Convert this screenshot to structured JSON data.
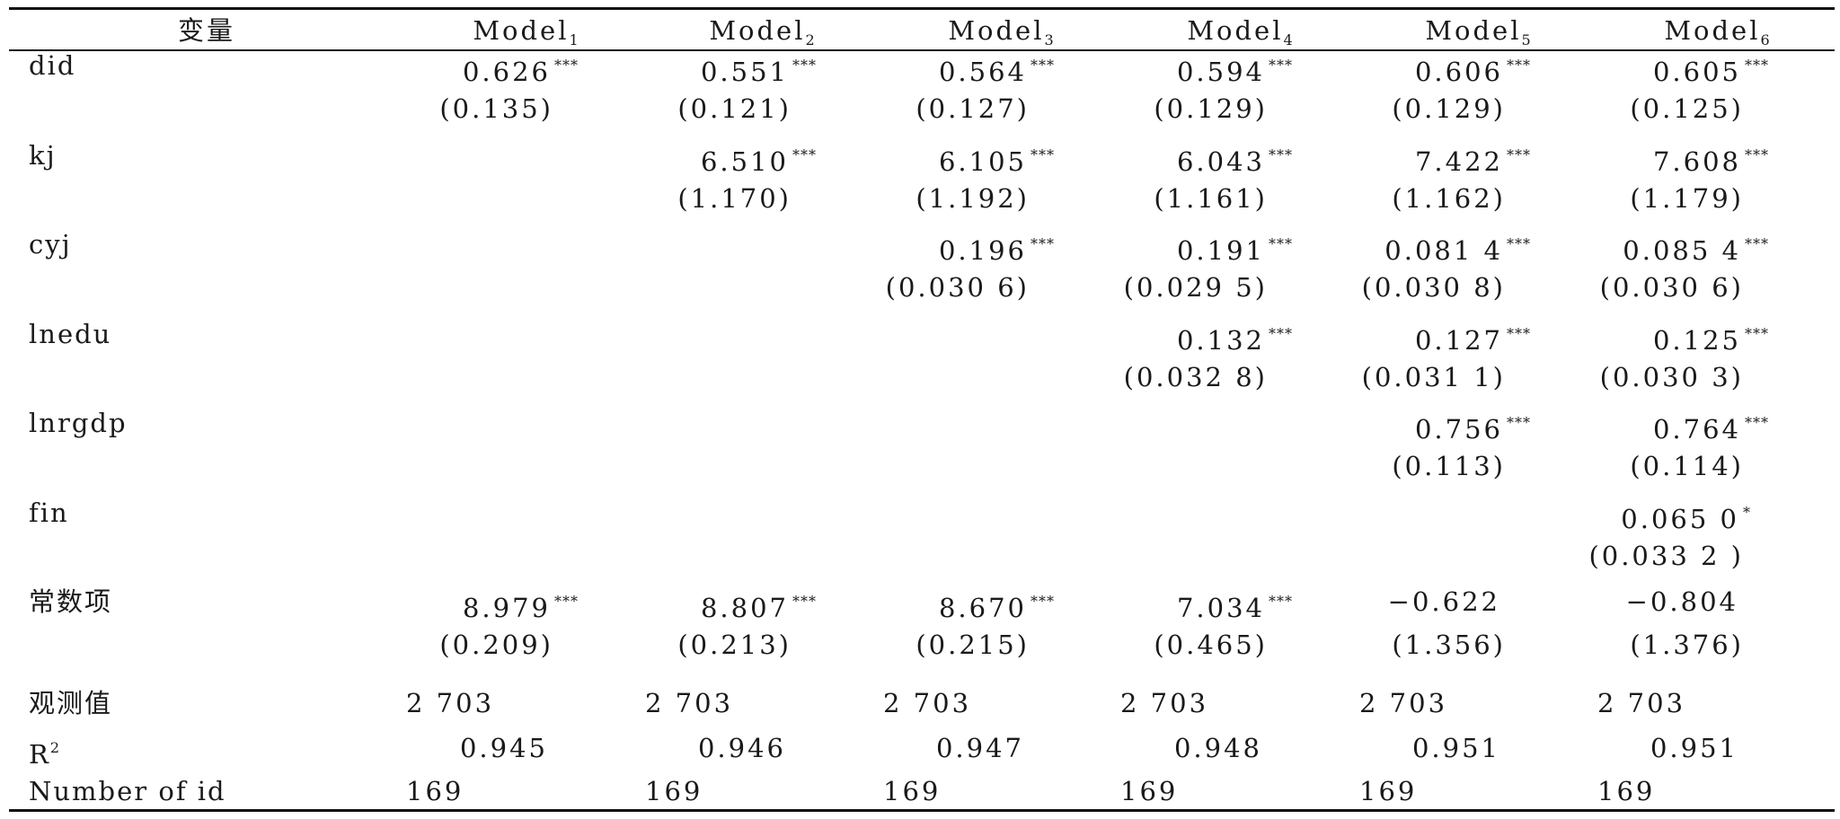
{
  "table": {
    "headers": [
      "变量",
      "Model1",
      "Model2",
      "Model3",
      "Model4",
      "Model5",
      "Model6"
    ],
    "header_sub": [
      "",
      "1",
      "2",
      "3",
      "4",
      "5",
      "6"
    ],
    "rows": [
      {
        "label": "did",
        "coef": [
          "0.626",
          "0.551",
          "0.564",
          "0.594",
          "0.606",
          "0.605"
        ],
        "stars": [
          "***",
          "***",
          "***",
          "***",
          "***",
          "***"
        ],
        "se": [
          "(0.135)",
          "(0.121)",
          "(0.127)",
          "(0.129)",
          "(0.129)",
          "(0.125)"
        ]
      },
      {
        "label": "kj",
        "coef": [
          "",
          "6.510",
          "6.105",
          "6.043",
          "7.422",
          "7.608"
        ],
        "stars": [
          "",
          "***",
          "***",
          "***",
          "***",
          "***"
        ],
        "se": [
          "",
          "(1.170)",
          "(1.192)",
          "(1.161)",
          "(1.162)",
          "(1.179)"
        ]
      },
      {
        "label": "cyj",
        "coef": [
          "",
          "",
          "0.196",
          "0.191",
          "0.081 4",
          "0.085 4"
        ],
        "stars": [
          "",
          "",
          "***",
          "***",
          "***",
          "***"
        ],
        "se": [
          "",
          "",
          "(0.030 6)",
          "(0.029 5)",
          "(0.030 8)",
          "(0.030 6)"
        ]
      },
      {
        "label": "lnedu",
        "coef": [
          "",
          "",
          "",
          "0.132",
          "0.127",
          "0.125"
        ],
        "stars": [
          "",
          "",
          "",
          "***",
          "***",
          "***"
        ],
        "se": [
          "",
          "",
          "",
          "(0.032 8)",
          "(0.031 1)",
          "(0.030 3)"
        ]
      },
      {
        "label": "lnrgdp",
        "coef": [
          "",
          "",
          "",
          "",
          "0.756",
          "0.764"
        ],
        "stars": [
          "",
          "",
          "",
          "",
          "***",
          "***"
        ],
        "se": [
          "",
          "",
          "",
          "",
          "(0.113)",
          "(0.114)"
        ]
      },
      {
        "label": "fin",
        "coef": [
          "",
          "",
          "",
          "",
          "",
          "0.065 0"
        ],
        "stars": [
          "",
          "",
          "",
          "",
          "",
          "*"
        ],
        "se": [
          "",
          "",
          "",
          "",
          "",
          "(0.033 2 )"
        ]
      },
      {
        "label": "常数项",
        "coef": [
          "8.979",
          "8.807",
          "8.670",
          "7.034",
          "−0.622",
          "−0.804"
        ],
        "stars": [
          "***",
          "***",
          "***",
          "***",
          "",
          ""
        ],
        "se": [
          "(0.209)",
          "(0.213)",
          "(0.215)",
          "(0.465)",
          "(1.356)",
          "(1.376)"
        ]
      }
    ],
    "stats": [
      {
        "label": "观测值",
        "values": [
          "2 703",
          "2 703",
          "2 703",
          "2 703",
          "2 703",
          "2 703"
        ]
      },
      {
        "label": "R",
        "label_sup": "2",
        "values": [
          "0.945",
          "0.946",
          "0.947",
          "0.948",
          "0.951",
          "0.951"
        ]
      },
      {
        "label": "Number of id",
        "values": [
          "169",
          "169",
          "169",
          "169",
          "169",
          "169"
        ]
      }
    ]
  }
}
